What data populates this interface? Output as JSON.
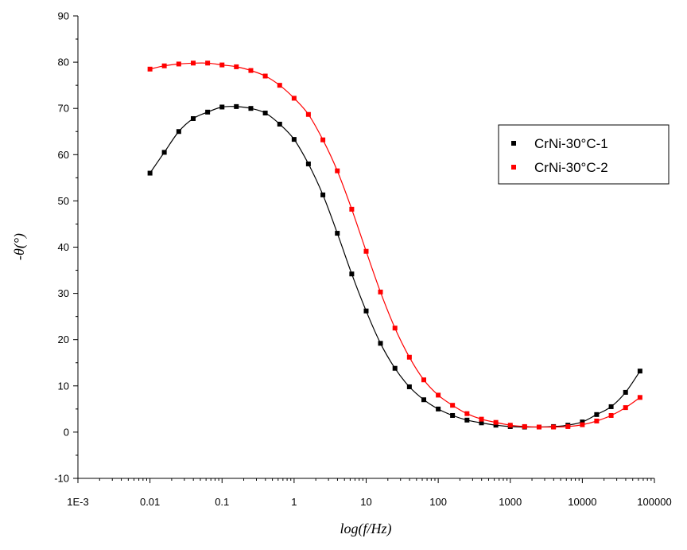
{
  "chart_data": {
    "type": "scatter",
    "title": "",
    "xlabel": "log(f/Hz)",
    "ylabel": "-θ(°)",
    "xscale": "log",
    "xlim": [
      0.001,
      100000
    ],
    "ylim": [
      -10,
      90
    ],
    "xticks": [
      0.001,
      0.01,
      0.1,
      1,
      10,
      100,
      1000,
      10000,
      100000
    ],
    "xtick_labels": [
      "1E-3",
      "0.01",
      "0.1",
      "1",
      "10",
      "100",
      "1000",
      "10000",
      "100000"
    ],
    "yticks": [
      -10,
      0,
      10,
      20,
      30,
      40,
      50,
      60,
      70,
      80,
      90
    ],
    "ytick_labels": [
      "-10",
      "0",
      "10",
      "20",
      "30",
      "40",
      "50",
      "60",
      "70",
      "80",
      "90"
    ],
    "grid": false,
    "legend_position": "right",
    "series": [
      {
        "name": "CrNi-30°C-1",
        "color": "#000000",
        "marker": "square",
        "fit_line": true,
        "x": [
          0.01,
          0.0158,
          0.0251,
          0.0398,
          0.0631,
          0.1,
          0.158,
          0.251,
          0.398,
          0.631,
          1,
          1.58,
          2.51,
          3.98,
          6.31,
          10,
          15.8,
          25.1,
          39.8,
          63.1,
          100,
          158,
          251,
          398,
          631,
          1000,
          1580,
          2510,
          3980,
          6310,
          10000,
          15800,
          25100,
          39800,
          63100
        ],
        "y": [
          56,
          60.5,
          65,
          67.8,
          69.2,
          70.3,
          70.4,
          70,
          69,
          66.6,
          63.3,
          58,
          51.3,
          43,
          34.2,
          26.2,
          19.2,
          13.8,
          9.8,
          7,
          5,
          3.6,
          2.6,
          2,
          1.5,
          1.2,
          1.1,
          1.1,
          1.2,
          1.5,
          2.2,
          3.8,
          5.5,
          8.6,
          13.2
        ]
      },
      {
        "name": "CrNi-30°C-2",
        "color": "#ff0000",
        "marker": "square",
        "fit_line": true,
        "x": [
          0.01,
          0.0158,
          0.0251,
          0.0398,
          0.0631,
          0.1,
          0.158,
          0.251,
          0.398,
          0.631,
          1,
          1.58,
          2.51,
          3.98,
          6.31,
          10,
          15.8,
          25.1,
          39.8,
          63.1,
          100,
          158,
          251,
          398,
          631,
          1000,
          1580,
          2510,
          3980,
          6310,
          10000,
          15800,
          25100,
          39800,
          63100
        ],
        "y": [
          78.5,
          79.2,
          79.6,
          79.8,
          79.8,
          79.4,
          79,
          78.2,
          77,
          75,
          72.2,
          68.7,
          63.2,
          56.5,
          48.2,
          39.1,
          30.3,
          22.5,
          16.2,
          11.3,
          8,
          5.8,
          4,
          2.8,
          2.1,
          1.5,
          1.2,
          1.1,
          1.1,
          1.2,
          1.6,
          2.4,
          3.6,
          5.3,
          7.5
        ]
      }
    ]
  }
}
